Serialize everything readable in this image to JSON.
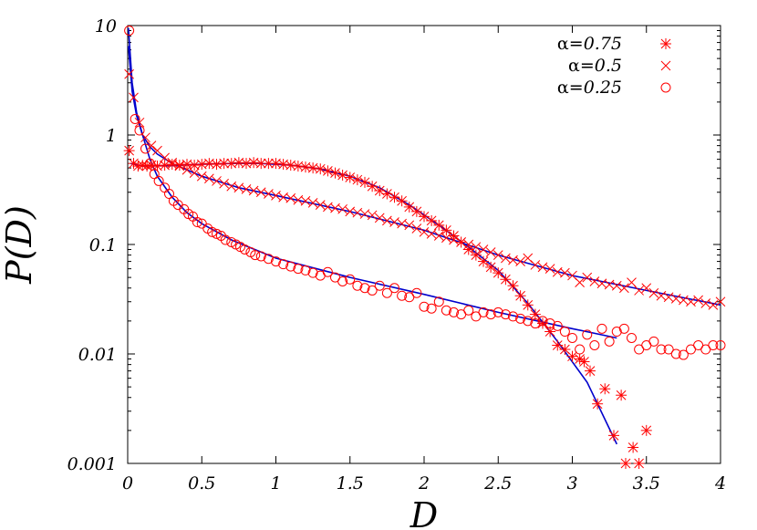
{
  "chart_data": {
    "type": "scatter",
    "title": "",
    "xlabel": "D",
    "ylabel": "P(D)",
    "xlim": [
      0,
      4
    ],
    "ylim": [
      0.001,
      10
    ],
    "yscale": "log",
    "grid": false,
    "legend_position": "top-right",
    "x_ticks": [
      {
        "value": 0,
        "label": "0"
      },
      {
        "value": 0.5,
        "label": "0.5"
      },
      {
        "value": 1,
        "label": "1"
      },
      {
        "value": 1.5,
        "label": "1.5"
      },
      {
        "value": 2,
        "label": "2"
      },
      {
        "value": 2.5,
        "label": "2.5"
      },
      {
        "value": 3,
        "label": "3"
      },
      {
        "value": 3.5,
        "label": "3.5"
      },
      {
        "value": 4,
        "label": "4"
      }
    ],
    "y_ticks": [
      {
        "value": 0.001,
        "label": "0.001"
      },
      {
        "value": 0.01,
        "label": "0.01"
      },
      {
        "value": 0.1,
        "label": "0.1"
      },
      {
        "value": 1,
        "label": "1"
      },
      {
        "value": 10,
        "label": "10"
      }
    ],
    "colors": {
      "data": "#ff0000",
      "fit": "#0000cc",
      "axes": "#000000"
    },
    "series": [
      {
        "name_symbol": "α=",
        "name_value": "0.75",
        "marker": "star",
        "points": [
          [
            0.01,
            0.72
          ],
          [
            0.04,
            0.55
          ],
          [
            0.07,
            0.52
          ],
          [
            0.1,
            0.53
          ],
          [
            0.13,
            0.52
          ],
          [
            0.16,
            0.53
          ],
          [
            0.2,
            0.52
          ],
          [
            0.25,
            0.53
          ],
          [
            0.3,
            0.54
          ],
          [
            0.35,
            0.53
          ],
          [
            0.4,
            0.54
          ],
          [
            0.45,
            0.53
          ],
          [
            0.5,
            0.54
          ],
          [
            0.55,
            0.55
          ],
          [
            0.6,
            0.54
          ],
          [
            0.65,
            0.55
          ],
          [
            0.7,
            0.55
          ],
          [
            0.75,
            0.56
          ],
          [
            0.8,
            0.55
          ],
          [
            0.85,
            0.56
          ],
          [
            0.9,
            0.55
          ],
          [
            0.95,
            0.55
          ],
          [
            1.0,
            0.55
          ],
          [
            1.05,
            0.54
          ],
          [
            1.1,
            0.53
          ],
          [
            1.15,
            0.52
          ],
          [
            1.2,
            0.51
          ],
          [
            1.25,
            0.5
          ],
          [
            1.3,
            0.49
          ],
          [
            1.35,
            0.47
          ],
          [
            1.4,
            0.45
          ],
          [
            1.45,
            0.43
          ],
          [
            1.5,
            0.41
          ],
          [
            1.55,
            0.39
          ],
          [
            1.6,
            0.37
          ],
          [
            1.65,
            0.34
          ],
          [
            1.7,
            0.31
          ],
          [
            1.75,
            0.29
          ],
          [
            1.8,
            0.27
          ],
          [
            1.85,
            0.25
          ],
          [
            1.9,
            0.22
          ],
          [
            1.95,
            0.2
          ],
          [
            2.0,
            0.18
          ],
          [
            2.05,
            0.165
          ],
          [
            2.1,
            0.15
          ],
          [
            2.15,
            0.135
          ],
          [
            2.2,
            0.12
          ],
          [
            2.25,
            0.105
          ],
          [
            2.3,
            0.09
          ],
          [
            2.35,
            0.08
          ],
          [
            2.4,
            0.07
          ],
          [
            2.45,
            0.062
          ],
          [
            2.5,
            0.055
          ],
          [
            2.55,
            0.048
          ],
          [
            2.6,
            0.042
          ],
          [
            2.65,
            0.034
          ],
          [
            2.7,
            0.028
          ],
          [
            2.75,
            0.023
          ],
          [
            2.8,
            0.019
          ],
          [
            2.85,
            0.016
          ],
          [
            2.9,
            0.012
          ],
          [
            2.95,
            0.011
          ],
          [
            3.0,
            0.0095
          ],
          [
            3.05,
            0.009
          ],
          [
            3.08,
            0.0085
          ],
          [
            3.12,
            0.007
          ],
          [
            3.17,
            0.0035
          ],
          [
            3.22,
            0.0048
          ],
          [
            3.28,
            0.0018
          ],
          [
            3.33,
            0.0042
          ],
          [
            3.36,
            0.001
          ],
          [
            3.41,
            0.0014
          ],
          [
            3.45,
            0.001
          ],
          [
            3.5,
            0.002
          ]
        ]
      },
      {
        "name_symbol": "α=",
        "name_value": "0.5",
        "marker": "cross",
        "points": [
          [
            0.01,
            3.6
          ],
          [
            0.04,
            2.2
          ],
          [
            0.08,
            1.3
          ],
          [
            0.12,
            0.95
          ],
          [
            0.16,
            0.8
          ],
          [
            0.2,
            0.72
          ],
          [
            0.25,
            0.62
          ],
          [
            0.3,
            0.56
          ],
          [
            0.35,
            0.52
          ],
          [
            0.4,
            0.48
          ],
          [
            0.45,
            0.45
          ],
          [
            0.5,
            0.42
          ],
          [
            0.55,
            0.4
          ],
          [
            0.6,
            0.38
          ],
          [
            0.65,
            0.36
          ],
          [
            0.7,
            0.34
          ],
          [
            0.75,
            0.33
          ],
          [
            0.8,
            0.32
          ],
          [
            0.85,
            0.31
          ],
          [
            0.9,
            0.3
          ],
          [
            0.95,
            0.29
          ],
          [
            1.0,
            0.28
          ],
          [
            1.05,
            0.27
          ],
          [
            1.1,
            0.265
          ],
          [
            1.15,
            0.255
          ],
          [
            1.2,
            0.25
          ],
          [
            1.25,
            0.24
          ],
          [
            1.3,
            0.23
          ],
          [
            1.35,
            0.22
          ],
          [
            1.4,
            0.215
          ],
          [
            1.45,
            0.21
          ],
          [
            1.5,
            0.2
          ],
          [
            1.55,
            0.195
          ],
          [
            1.6,
            0.19
          ],
          [
            1.65,
            0.185
          ],
          [
            1.7,
            0.175
          ],
          [
            1.75,
            0.165
          ],
          [
            1.8,
            0.16
          ],
          [
            1.85,
            0.155
          ],
          [
            1.9,
            0.15
          ],
          [
            1.95,
            0.14
          ],
          [
            2.0,
            0.13
          ],
          [
            2.05,
            0.125
          ],
          [
            2.1,
            0.12
          ],
          [
            2.15,
            0.115
          ],
          [
            2.2,
            0.11
          ],
          [
            2.25,
            0.105
          ],
          [
            2.3,
            0.1
          ],
          [
            2.35,
            0.095
          ],
          [
            2.4,
            0.09
          ],
          [
            2.45,
            0.085
          ],
          [
            2.5,
            0.08
          ],
          [
            2.55,
            0.075
          ],
          [
            2.6,
            0.072
          ],
          [
            2.65,
            0.07
          ],
          [
            2.7,
            0.075
          ],
          [
            2.75,
            0.065
          ],
          [
            2.8,
            0.062
          ],
          [
            2.85,
            0.06
          ],
          [
            2.9,
            0.056
          ],
          [
            2.95,
            0.055
          ],
          [
            3.0,
            0.052
          ],
          [
            3.05,
            0.045
          ],
          [
            3.1,
            0.05
          ],
          [
            3.15,
            0.046
          ],
          [
            3.2,
            0.044
          ],
          [
            3.25,
            0.043
          ],
          [
            3.3,
            0.042
          ],
          [
            3.35,
            0.04
          ],
          [
            3.4,
            0.045
          ],
          [
            3.45,
            0.038
          ],
          [
            3.5,
            0.04
          ],
          [
            3.55,
            0.036
          ],
          [
            3.6,
            0.034
          ],
          [
            3.65,
            0.033
          ],
          [
            3.7,
            0.032
          ],
          [
            3.75,
            0.031
          ],
          [
            3.8,
            0.03
          ],
          [
            3.85,
            0.031
          ],
          [
            3.9,
            0.029
          ],
          [
            3.95,
            0.028
          ],
          [
            4.0,
            0.03
          ]
        ]
      },
      {
        "name_symbol": "α=",
        "name_value": "0.25",
        "marker": "circle",
        "points": [
          [
            0.01,
            9.0
          ],
          [
            0.05,
            1.4
          ],
          [
            0.08,
            1.1
          ],
          [
            0.12,
            0.75
          ],
          [
            0.15,
            0.55
          ],
          [
            0.18,
            0.44
          ],
          [
            0.21,
            0.38
          ],
          [
            0.25,
            0.33
          ],
          [
            0.28,
            0.29
          ],
          [
            0.31,
            0.25
          ],
          [
            0.34,
            0.23
          ],
          [
            0.38,
            0.21
          ],
          [
            0.41,
            0.19
          ],
          [
            0.44,
            0.18
          ],
          [
            0.47,
            0.16
          ],
          [
            0.5,
            0.155
          ],
          [
            0.54,
            0.14
          ],
          [
            0.57,
            0.13
          ],
          [
            0.6,
            0.125
          ],
          [
            0.63,
            0.12
          ],
          [
            0.66,
            0.11
          ],
          [
            0.7,
            0.105
          ],
          [
            0.73,
            0.1
          ],
          [
            0.76,
            0.095
          ],
          [
            0.79,
            0.09
          ],
          [
            0.83,
            0.085
          ],
          [
            0.86,
            0.08
          ],
          [
            0.9,
            0.078
          ],
          [
            0.95,
            0.074
          ],
          [
            1.0,
            0.07
          ],
          [
            1.05,
            0.066
          ],
          [
            1.1,
            0.063
          ],
          [
            1.15,
            0.06
          ],
          [
            1.2,
            0.058
          ],
          [
            1.25,
            0.055
          ],
          [
            1.3,
            0.052
          ],
          [
            1.35,
            0.056
          ],
          [
            1.4,
            0.05
          ],
          [
            1.45,
            0.046
          ],
          [
            1.5,
            0.048
          ],
          [
            1.55,
            0.042
          ],
          [
            1.6,
            0.04
          ],
          [
            1.65,
            0.038
          ],
          [
            1.7,
            0.042
          ],
          [
            1.75,
            0.036
          ],
          [
            1.8,
            0.04
          ],
          [
            1.85,
            0.034
          ],
          [
            1.9,
            0.033
          ],
          [
            1.95,
            0.036
          ],
          [
            2.0,
            0.027
          ],
          [
            2.05,
            0.026
          ],
          [
            2.1,
            0.03
          ],
          [
            2.15,
            0.025
          ],
          [
            2.2,
            0.024
          ],
          [
            2.25,
            0.023
          ],
          [
            2.3,
            0.025
          ],
          [
            2.35,
            0.022
          ],
          [
            2.4,
            0.024
          ],
          [
            2.45,
            0.023
          ],
          [
            2.5,
            0.024
          ],
          [
            2.55,
            0.023
          ],
          [
            2.6,
            0.022
          ],
          [
            2.65,
            0.021
          ],
          [
            2.7,
            0.02
          ],
          [
            2.75,
            0.019
          ],
          [
            2.8,
            0.02
          ],
          [
            2.85,
            0.019
          ],
          [
            2.9,
            0.018
          ],
          [
            2.95,
            0.016
          ],
          [
            3.0,
            0.014
          ],
          [
            3.05,
            0.011
          ],
          [
            3.1,
            0.015
          ],
          [
            3.15,
            0.012
          ],
          [
            3.2,
            0.017
          ],
          [
            3.25,
            0.013
          ],
          [
            3.3,
            0.016
          ],
          [
            3.35,
            0.017
          ],
          [
            3.4,
            0.014
          ],
          [
            3.45,
            0.011
          ],
          [
            3.5,
            0.012
          ],
          [
            3.55,
            0.013
          ],
          [
            3.6,
            0.011
          ],
          [
            3.65,
            0.011
          ],
          [
            3.7,
            0.01
          ],
          [
            3.75,
            0.0098
          ],
          [
            3.8,
            0.011
          ],
          [
            3.85,
            0.012
          ],
          [
            3.9,
            0.011
          ],
          [
            3.95,
            0.012
          ],
          [
            4.0,
            0.012
          ]
        ]
      }
    ],
    "fit_curves": [
      {
        "points": [
          [
            0.02,
            0.55
          ],
          [
            0.1,
            0.52
          ],
          [
            0.3,
            0.525
          ],
          [
            0.5,
            0.54
          ],
          [
            0.7,
            0.55
          ],
          [
            0.9,
            0.55
          ],
          [
            1.1,
            0.53
          ],
          [
            1.3,
            0.49
          ],
          [
            1.5,
            0.42
          ],
          [
            1.7,
            0.33
          ],
          [
            1.9,
            0.23
          ],
          [
            2.1,
            0.15
          ],
          [
            2.3,
            0.095
          ],
          [
            2.5,
            0.058
          ],
          [
            2.7,
            0.029
          ],
          [
            2.9,
            0.013
          ],
          [
            3.1,
            0.0055
          ],
          [
            3.3,
            0.0015
          ]
        ]
      },
      {
        "points": [
          [
            0.005,
            6.5
          ],
          [
            0.03,
            2.5
          ],
          [
            0.06,
            1.5
          ],
          [
            0.1,
            1.0
          ],
          [
            0.15,
            0.78
          ],
          [
            0.2,
            0.67
          ],
          [
            0.3,
            0.55
          ],
          [
            0.5,
            0.42
          ],
          [
            0.75,
            0.33
          ],
          [
            1.0,
            0.28
          ],
          [
            1.5,
            0.2
          ],
          [
            2.0,
            0.135
          ],
          [
            2.5,
            0.08
          ],
          [
            3.0,
            0.052
          ],
          [
            3.5,
            0.038
          ],
          [
            4.0,
            0.028
          ]
        ]
      },
      {
        "points": [
          [
            0.005,
            9.5
          ],
          [
            0.03,
            3.0
          ],
          [
            0.06,
            1.6
          ],
          [
            0.1,
            1.0
          ],
          [
            0.15,
            0.6
          ],
          [
            0.2,
            0.42
          ],
          [
            0.3,
            0.27
          ],
          [
            0.4,
            0.195
          ],
          [
            0.5,
            0.155
          ],
          [
            0.7,
            0.11
          ],
          [
            1.0,
            0.075
          ],
          [
            1.5,
            0.05
          ],
          [
            2.0,
            0.035
          ],
          [
            2.5,
            0.024
          ],
          [
            3.0,
            0.017
          ],
          [
            3.3,
            0.014
          ]
        ]
      }
    ]
  }
}
